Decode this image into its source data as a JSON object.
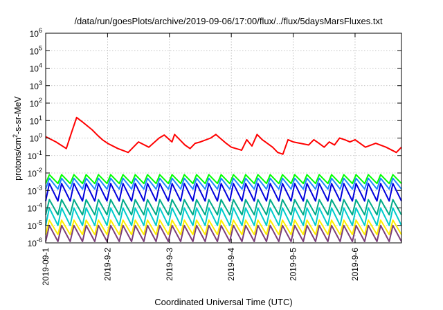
{
  "chart_data": {
    "type": "line",
    "title": "/data/run/goesPlots/archive/2019-09-06/17:00/flux/../flux/5daysMarsFluxes.txt",
    "xlabel": "Coordinated Universal Time (UTC)",
    "ylabel_parts": [
      "protons/cm",
      "2",
      "-s-sr-MeV"
    ],
    "y_scale": "log",
    "ylim": [
      1e-06,
      1000000.0
    ],
    "y_ticks": [
      {
        "value": 1e-06,
        "base": "10",
        "exp": "-6"
      },
      {
        "value": 1e-05,
        "base": "10",
        "exp": "-5"
      },
      {
        "value": 0.0001,
        "base": "10",
        "exp": "-4"
      },
      {
        "value": 0.001,
        "base": "10",
        "exp": "-3"
      },
      {
        "value": 0.01,
        "base": "10",
        "exp": "-2"
      },
      {
        "value": 0.1,
        "base": "10",
        "exp": "-1"
      },
      {
        "value": 1,
        "base": "10",
        "exp": "0"
      },
      {
        "value": 10,
        "base": "10",
        "exp": "1"
      },
      {
        "value": 100,
        "base": "10",
        "exp": "2"
      },
      {
        "value": 1000,
        "base": "10",
        "exp": "3"
      },
      {
        "value": 10000,
        "base": "10",
        "exp": "4"
      },
      {
        "value": 100000,
        "base": "10",
        "exp": "5"
      },
      {
        "value": 1000000,
        "base": "10",
        "exp": "6"
      }
    ],
    "xlim": [
      "2019-09-01T00:00",
      "2019-09-06T18:00"
    ],
    "x_ticks": [
      "2019-09-1",
      "2019-9-2",
      "2019-9-3",
      "2019-9-4",
      "2019-9-5",
      "2019-9-6"
    ],
    "grid": true,
    "series": [
      {
        "color": "#ff0000",
        "x": [
          "2019-09-01T00:00",
          "2019-09-01T04:00",
          "2019-09-01T08:00",
          "2019-09-01T10:00",
          "2019-09-01T12:00",
          "2019-09-01T14:00",
          "2019-09-01T18:00",
          "2019-09-01T20:00",
          "2019-09-01T22:00",
          "2019-09-02T00:00",
          "2019-09-02T04:00",
          "2019-09-02T08:00",
          "2019-09-02T12:00",
          "2019-09-02T16:00",
          "2019-09-02T20:00",
          "2019-09-02T22:00",
          "2019-09-03T01:00",
          "2019-09-03T02:00",
          "2019-09-03T04:00",
          "2019-09-03T06:00",
          "2019-09-03T08:00",
          "2019-09-03T10:00",
          "2019-09-03T12:00",
          "2019-09-03T16:00",
          "2019-09-03T18:00",
          "2019-09-03T20:00",
          "2019-09-03T22:00",
          "2019-09-04T00:00",
          "2019-09-04T04:00",
          "2019-09-04T06:00",
          "2019-09-04T08:00",
          "2019-09-04T10:00",
          "2019-09-04T12:00",
          "2019-09-04T16:00",
          "2019-09-04T18:00",
          "2019-09-04T20:00",
          "2019-09-04T22:00",
          "2019-09-05T00:00",
          "2019-09-05T06:00",
          "2019-09-05T08:00",
          "2019-09-05T10:00",
          "2019-09-05T12:00",
          "2019-09-05T14:00",
          "2019-09-05T16:00",
          "2019-09-05T18:00",
          "2019-09-05T20:00",
          "2019-09-05T22:00",
          "2019-09-06T00:00",
          "2019-09-06T04:00",
          "2019-09-06T08:00",
          "2019-09-06T12:00",
          "2019-09-06T16:00",
          "2019-09-06T18:00"
        ],
        "y": [
          1.2,
          0.6,
          0.25,
          2.0,
          15,
          9,
          3.0,
          1.5,
          0.8,
          0.5,
          0.25,
          0.15,
          0.6,
          0.3,
          1.0,
          1.5,
          0.6,
          1.6,
          0.8,
          0.4,
          0.25,
          0.5,
          0.6,
          1.0,
          1.6,
          0.9,
          0.5,
          0.3,
          0.2,
          0.8,
          0.35,
          1.6,
          0.8,
          0.3,
          0.15,
          0.12,
          0.8,
          0.6,
          0.4,
          0.8,
          0.5,
          0.3,
          0.6,
          0.4,
          1.0,
          0.8,
          0.6,
          0.8,
          0.3,
          0.5,
          0.3,
          0.15,
          0.3
        ]
      },
      {
        "color": "#00ff00",
        "x_start": "2019-09-01T00:00",
        "x_end": "2019-09-06T18:00",
        "peaks": 29,
        "peak": 0.008,
        "trough": 0.0025
      },
      {
        "color": "#1e88ff",
        "x_start": "2019-09-01T00:00",
        "x_end": "2019-09-06T18:00",
        "peaks": 29,
        "peak": 0.005,
        "trough": 0.0012
      },
      {
        "color": "#0000dd",
        "x_start": "2019-09-01T00:00",
        "x_end": "2019-09-06T18:00",
        "peaks": 29,
        "peak": 0.0025,
        "trough": 0.00025
      },
      {
        "color": "#00aa88",
        "x_start": "2019-09-01T00:00",
        "x_end": "2019-09-06T18:00",
        "peaks": 29,
        "peak": 0.0003,
        "trough": 4e-05
      },
      {
        "color": "#00cccc",
        "x_start": "2019-09-01T00:00",
        "x_end": "2019-09-06T18:00",
        "peaks": 29,
        "peak": 0.0001,
        "trough": 1e-05
      },
      {
        "color": "#ffee00",
        "x_start": "2019-09-01T00:00",
        "x_end": "2019-09-06T18:00",
        "peaks": 29,
        "peak": 2e-05,
        "trough": 3e-06
      },
      {
        "color": "#7a3e7a",
        "x_start": "2019-09-01T00:00",
        "x_end": "2019-09-06T18:00",
        "peaks": 29,
        "peak": 1e-05,
        "trough": 1.2e-06
      }
    ]
  }
}
